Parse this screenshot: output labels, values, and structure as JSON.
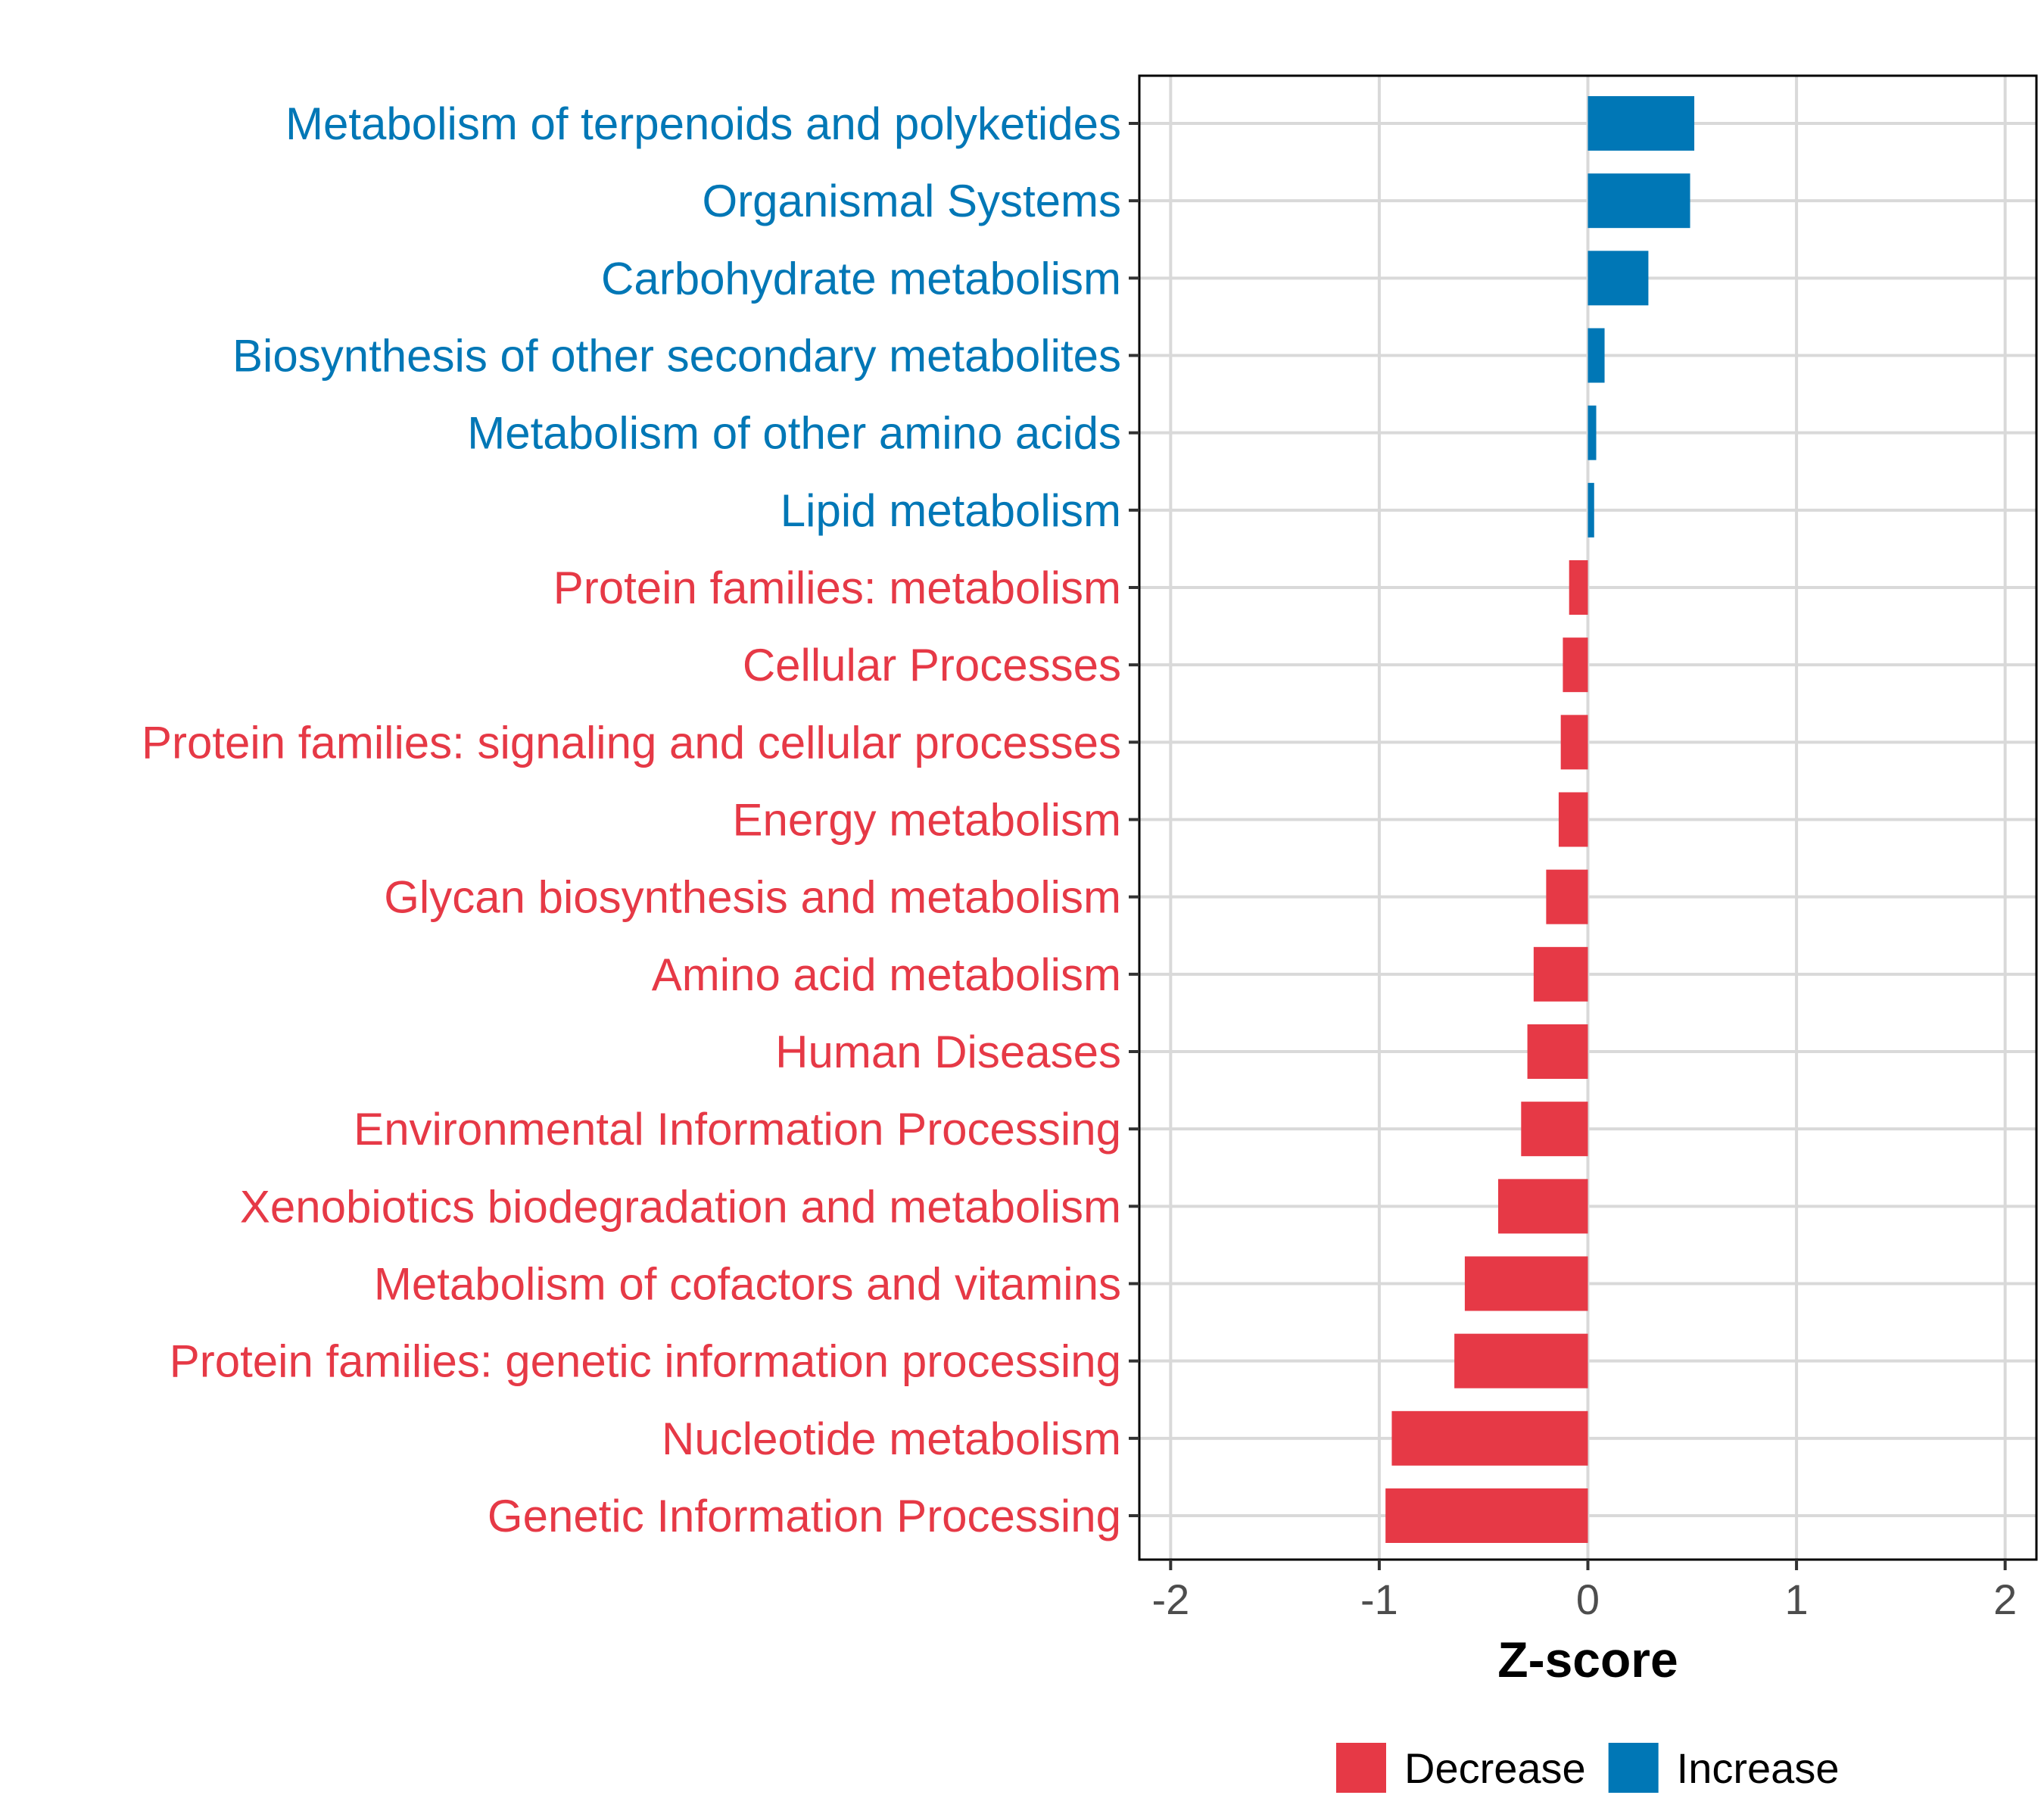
{
  "chart_data": {
    "type": "bar",
    "orientation": "horizontal",
    "title": "",
    "xlabel": "Z-score",
    "ylabel": "",
    "xlim": [
      -2.15,
      2.15
    ],
    "xticks": [
      -2,
      -1,
      0,
      1,
      2
    ],
    "xtick_labels": [
      "-2",
      "-1",
      "0",
      "1",
      "2"
    ],
    "grid": true,
    "legend_position": "bottom",
    "colors": {
      "Decrease": "#E63946",
      "Increase": "#0077B6"
    },
    "legend": [
      {
        "label": "Decrease",
        "color": "#E63946"
      },
      {
        "label": "Increase",
        "color": "#0077B6"
      }
    ],
    "categories": [
      "Metabolism of terpenoids and polyketides",
      "Organismal Systems",
      "Carbohydrate metabolism",
      "Biosynthesis of other secondary metabolites",
      "Metabolism of other amino acids",
      "Lipid metabolism",
      "Protein families: metabolism",
      "Cellular Processes",
      "Protein families: signaling and cellular processes",
      "Energy metabolism",
      "Glycan biosynthesis and metabolism",
      "Amino acid metabolism",
      "Human Diseases",
      "Environmental Information Processing",
      "Xenobiotics biodegradation and metabolism",
      "Metabolism of cofactors and vitamins",
      "Protein families: genetic information processing",
      "Nucleotide metabolism",
      "Genetic Information Processing"
    ],
    "values": [
      0.51,
      0.49,
      0.29,
      0.08,
      0.04,
      0.03,
      -0.09,
      -0.12,
      -0.13,
      -0.14,
      -0.2,
      -0.26,
      -0.29,
      -0.32,
      -0.43,
      -0.59,
      -0.64,
      -0.94,
      -0.97
    ],
    "groups": [
      "Increase",
      "Increase",
      "Increase",
      "Increase",
      "Increase",
      "Increase",
      "Decrease",
      "Decrease",
      "Decrease",
      "Decrease",
      "Decrease",
      "Decrease",
      "Decrease",
      "Decrease",
      "Decrease",
      "Decrease",
      "Decrease",
      "Decrease",
      "Decrease"
    ]
  }
}
